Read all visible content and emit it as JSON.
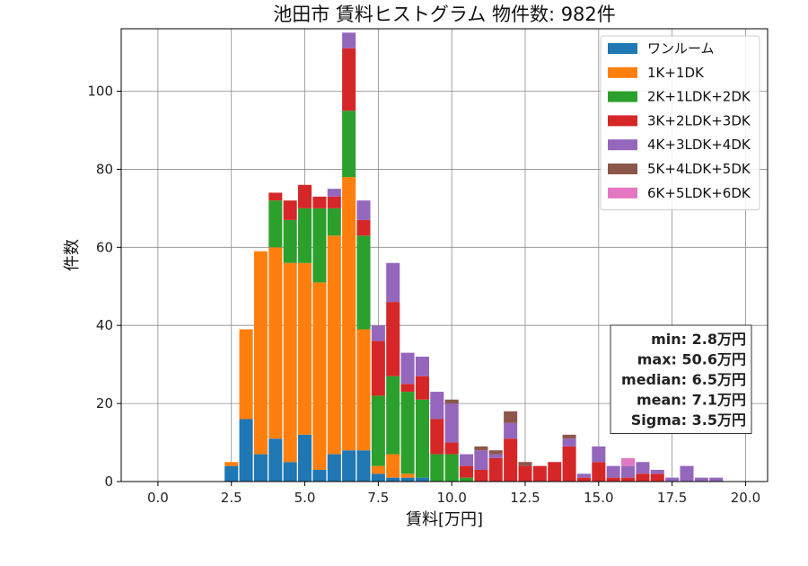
{
  "chart_data": {
    "type": "bar",
    "stacked": true,
    "title": "池田市 賃料ヒストグラム 物件数: 982件",
    "xlabel": "賃料[万円]",
    "ylabel": "件数",
    "xlim": [
      -1.25,
      20.75
    ],
    "ylim": [
      0,
      116
    ],
    "xticks": [
      0.0,
      2.5,
      5.0,
      7.5,
      10.0,
      12.5,
      15.0,
      17.5,
      20.0
    ],
    "xtick_labels": [
      "0.0",
      "2.5",
      "5.0",
      "7.5",
      "10.0",
      "12.5",
      "15.0",
      "17.5",
      "20.0"
    ],
    "yticks": [
      0,
      20,
      40,
      60,
      80,
      100
    ],
    "ytick_labels": [
      "0",
      "20",
      "40",
      "60",
      "80",
      "100"
    ],
    "grid": true,
    "legend_position": "top-right",
    "x": [
      2.5,
      3.0,
      3.5,
      4.0,
      4.5,
      5.0,
      5.5,
      6.0,
      6.5,
      7.0,
      7.5,
      8.0,
      8.5,
      9.0,
      9.5,
      10.0,
      10.5,
      11.0,
      11.5,
      12.0,
      12.5,
      13.0,
      13.5,
      14.0,
      14.5,
      15.0,
      15.5,
      16.0,
      16.5,
      17.0,
      17.5,
      18.0,
      18.5,
      19.0
    ],
    "series": [
      {
        "name": "ワンルーム",
        "color": "#1f77b4",
        "values": [
          4,
          16,
          7,
          11,
          5,
          12,
          3,
          7,
          8,
          8,
          2,
          1,
          1,
          1,
          0,
          0,
          0,
          0,
          0,
          0,
          0,
          0,
          0,
          0,
          0,
          0,
          0,
          0,
          0,
          0,
          0,
          0,
          0,
          0
        ]
      },
      {
        "name": "1K+1DK",
        "color": "#ff7f0e",
        "values": [
          1,
          23,
          52,
          49,
          51,
          44,
          48,
          56,
          70,
          31,
          2,
          6,
          1,
          0,
          0,
          0,
          0,
          0,
          0,
          0,
          0,
          0,
          0,
          0,
          0,
          0,
          0,
          0,
          0,
          0,
          0,
          0,
          0,
          0
        ]
      },
      {
        "name": "2K+1LDK+2DK",
        "color": "#2ca02c",
        "values": [
          0,
          0,
          0,
          12,
          11,
          14,
          19,
          7,
          17,
          24,
          18,
          20,
          21,
          20,
          7,
          7,
          1,
          0,
          0,
          0,
          0,
          0,
          0,
          0,
          0,
          0,
          0,
          0,
          0,
          0,
          0,
          0,
          0,
          0
        ]
      },
      {
        "name": "3K+2LDK+3DK",
        "color": "#d62728",
        "values": [
          0,
          0,
          0,
          2,
          5,
          6,
          3,
          3,
          16,
          4,
          14,
          19,
          2,
          6,
          9,
          3,
          3,
          3,
          6,
          11,
          4,
          4,
          5,
          9,
          1,
          5,
          1,
          1,
          2,
          2,
          0,
          0,
          0,
          0
        ]
      },
      {
        "name": "4K+3LDK+4DK",
        "color": "#9467bd",
        "values": [
          0,
          0,
          0,
          0,
          0,
          0,
          0,
          2,
          4,
          5,
          4,
          10,
          8,
          5,
          7,
          10,
          3,
          5,
          1,
          4,
          0,
          0,
          0,
          2,
          1,
          4,
          3,
          3,
          3,
          1,
          1,
          4,
          1,
          1
        ]
      },
      {
        "name": "5K+4LDK+5DK",
        "color": "#8c564b",
        "values": [
          0,
          0,
          0,
          0,
          0,
          0,
          0,
          0,
          0,
          0,
          0,
          0,
          0,
          0,
          0,
          1,
          0,
          1,
          1,
          3,
          1,
          0,
          0,
          1,
          0,
          0,
          0,
          0,
          0,
          0,
          0,
          0,
          0,
          0
        ]
      },
      {
        "name": "6K+5LDK+6DK",
        "color": "#e377c2",
        "values": [
          0,
          0,
          0,
          0,
          0,
          0,
          0,
          0,
          0,
          0,
          0,
          0,
          0,
          0,
          0,
          0,
          0,
          0,
          0,
          0,
          0,
          0,
          0,
          0,
          0,
          0,
          0,
          2,
          0,
          0,
          0,
          0,
          0,
          0
        ]
      }
    ],
    "stats": [
      "min: 2.8万円",
      "max: 50.6万円",
      "median: 6.5万円",
      "mean: 7.1万円",
      "Sigma: 3.5万円"
    ]
  }
}
